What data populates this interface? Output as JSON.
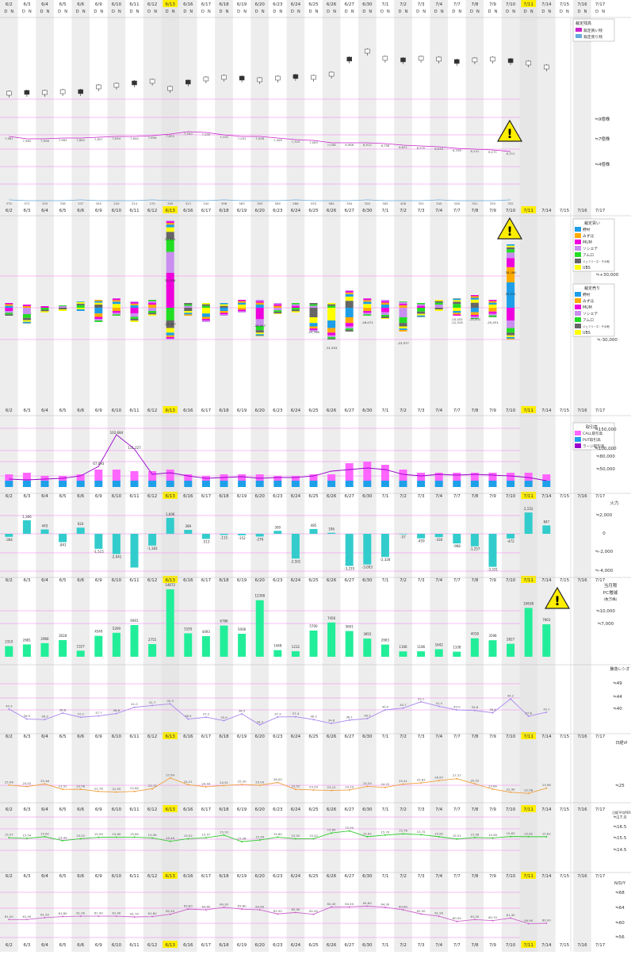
{
  "dates": [
    "6/2",
    "6/3",
    "6/4",
    "6/5",
    "6/6",
    "6/9",
    "6/10",
    "6/11",
    "6/12",
    "6/13",
    "6/16",
    "6/17",
    "6/18",
    "6/19",
    "6/20",
    "6/23",
    "6/24",
    "6/25",
    "6/26",
    "6/27",
    "6/30",
    "7/1",
    "7/2",
    "7/3",
    "7/4",
    "7/7",
    "7/8",
    "7/9",
    "7/10",
    "7/11",
    "7/14",
    "7/15",
    "7/16",
    "7/17"
  ],
  "day_flags": [
    "D",
    "N"
  ],
  "highlight_dates": [
    "6/13",
    "7/11"
  ],
  "colors": {
    "highlight": "#ffee00",
    "band": "#ededed",
    "pink_line": "#f27ff2",
    "candle_up": "#ffffff",
    "candle_down": "#333333",
    "margin_buy": "#cc22cc",
    "margin_sell": "#66aadd",
    "nomura": "#1e9ee8",
    "mizuho": "#ffaa00",
    "mum": "#ee00dd",
    "sg": "#c98ef0",
    "amro": "#22dd22",
    "jefferies": "#666666",
    "ubs": "#ffff00",
    "call": "#ff66ff",
    "put": "#1ea0e8",
    "large": "#9900cc",
    "trend_bar": "#33cccc",
    "pc_bar": "#22ee99",
    "ratio_line": "#aa88ee",
    "vi_line": "#f0a040",
    "per_line": "#33cc33",
    "nd_line": "#cc66cc"
  },
  "warning_icons": [
    "warning-icon",
    "warning-icon",
    "warning-icon"
  ],
  "charts": {
    "price": {
      "legend_title": "裁定残高",
      "legend": [
        "裁定買い残",
        "裁定売り残"
      ],
      "right_labels": [
        "≒9億株",
        "≒7億株",
        "≒4億株"
      ],
      "margin_buy_labels": [
        "7,961",
        "7,962",
        "7,906",
        "7,983",
        "7,862",
        "7,657",
        "7,654",
        "7,640",
        "7,656",
        "7,631",
        "7,500",
        "7,200",
        "7,100",
        "7,041",
        "7,046",
        "7,408",
        "7,325",
        "7,063",
        "7,058",
        "6,986",
        "6,912",
        "6,758",
        "6,621",
        "6,570",
        "6,540",
        "6,338",
        "6,241",
        "6,271",
        "6,311"
      ],
      "margin_sell_labels": [
        "375",
        "372",
        "335",
        "338",
        "337",
        "345",
        "240",
        "224",
        "270",
        "340",
        "323",
        "340",
        "398",
        "563",
        "363",
        "585",
        "586",
        "555",
        "564",
        "394",
        "300",
        "365",
        "408",
        "352",
        "345",
        "346",
        "351",
        "355",
        "332"
      ]
    },
    "brokers": {
      "legend1_title": "裁定買い",
      "legend2_title": "裁定売り",
      "legend": [
        "野村",
        "みずほ",
        "MUM",
        "ソシエテ",
        "アムロ",
        "ジェフリーズ・その他",
        "UBS"
      ],
      "right_labels": [
        "≒+30,000",
        "0",
        "≒-30,000"
      ],
      "labels": [
        "22,521",
        "32,706",
        "-27,497",
        "38,186",
        "25,371",
        "-25,348",
        "-31,503",
        "-28,907",
        "-26,071",
        "-23,577",
        "-20,031",
        "-18,001",
        "-12,319",
        "-10,432"
      ]
    },
    "volume": {
      "legend_title": "取引高",
      "legend": [
        "CALL取引高",
        "PUT取引高",
        "ラージ取引高"
      ],
      "right_labels": [
        "≒150,000",
        "≒100,000",
        "≒80,000",
        "≒50,000"
      ],
      "peak_labels": [
        "67,093",
        "102,684",
        "111,227"
      ]
    },
    "trend": {
      "title": "火力",
      "right_labels": [
        "≒2,000",
        "0",
        "≒-2,000",
        "≒-4,000"
      ],
      "values": [
        -304,
        1366,
        443,
        -841,
        624,
        -1515,
        -2041,
        -3400,
        -1183,
        1606,
        399,
        -513,
        -115,
        -152,
        -276,
        300,
        -2501,
        485,
        106,
        -3235,
        -3093,
        -2328,
        -57,
        -459,
        -330,
        -968,
        -1257,
        -3331,
        -472,
        2152,
        847,
        null,
        null,
        null
      ],
      "labels": [
        "-304",
        "1,366",
        "443",
        "-841",
        "624",
        "-1,515",
        "-2,041",
        "",
        "-1,183",
        "1,606",
        "399",
        "-513",
        "-115",
        "-152",
        "-276",
        "300",
        "-2,501",
        "485",
        "106",
        "-3,235",
        "-3,093",
        "-2,328",
        "-57",
        "-459",
        "-330",
        "-968",
        "-1,257",
        "-3,331",
        "-472",
        "2,152",
        "847",
        "",
        "",
        ""
      ]
    },
    "pc": {
      "title": "当月限",
      "title2": "PC増減",
      "title3": "(枚万株)",
      "right_labels": [
        "≒10,000",
        "≒7,000"
      ],
      "values": [
        2310,
        2681,
        2966,
        3628,
        1327,
        4549,
        5209,
        6901,
        2755,
        14672,
        5105,
        4493,
        6786,
        5006,
        12308,
        1448,
        1212,
        5700,
        7456,
        5601,
        3955,
        2663,
        1166,
        1186,
        1642,
        1108,
        4018,
        3598,
        2827,
        10638,
        7063,
        null,
        null,
        null
      ],
      "labels": [
        "2310",
        "2681",
        "2966",
        "3628",
        "1327",
        "4549",
        "5209",
        "6901",
        "2755",
        "14672",
        "5105",
        "4493",
        "6786",
        "5006",
        "12308",
        "1448",
        "1212",
        "5700",
        "7456",
        "5601",
        "3955",
        "2663",
        "1166",
        "1186",
        "1642",
        "1108",
        "4018",
        "3598",
        "2827",
        "10638",
        "7063",
        "",
        "",
        ""
      ]
    },
    "ratio": {
      "title": "騰落レシオ",
      "right_labels": [
        "≒49",
        "≒44",
        "≒40"
      ],
      "values": [
        40.3,
        36.5,
        36.3,
        38.8,
        37.2,
        37.7,
        38.6,
        41.0,
        41.7,
        42.3,
        36.5,
        37.2,
        35.9,
        38.5,
        34.3,
        37.3,
        37.4,
        36.3,
        34.8,
        36.1,
        36.7,
        40.0,
        40.7,
        43.1,
        41.4,
        40.0,
        39.8,
        38.9,
        44.2,
        37.6,
        39.1,
        null,
        null,
        null
      ]
    },
    "vi": {
      "title": "日経VI",
      "right_labels": [
        "≒25"
      ],
      "values": [
        25.06,
        24.52,
        25.46,
        23.52,
        23.56,
        22.78,
        22.55,
        22.8,
        23.72,
        27.64,
        25.21,
        24.44,
        24.91,
        25.3,
        25.0,
        26.0,
        23.52,
        23.29,
        23.12,
        23.29,
        24.59,
        24.22,
        25.41,
        25.83,
        26.67,
        27.37,
        25.52,
        23.6,
        22.49,
        22.08,
        23.96,
        null,
        null,
        null
      ]
    },
    "per": {
      "title": "日経平均PER",
      "right_labels": [
        "≒17.0",
        "≒16.5",
        "≒15.5",
        "≒14.5"
      ],
      "values": [
        15.57,
        15.54,
        15.62,
        15.43,
        15.52,
        15.59,
        15.6,
        15.6,
        15.56,
        15.4,
        15.52,
        15.57,
        15.7,
        15.38,
        15.46,
        15.6,
        15.52,
        15.52,
        15.8,
        15.9,
        15.62,
        15.7,
        15.76,
        15.72,
        15.62,
        15.51,
        15.58,
        15.56,
        15.63,
        15.62,
        15.62,
        null,
        null,
        null
      ]
    },
    "nd": {
      "title": "N/D/Y",
      "right_labels": [
        "≒68",
        "≒64",
        "≒60",
        "≒56"
      ],
      "values": [
        61.0,
        61.0,
        61.5,
        61.8,
        61.9,
        61.9,
        61.9,
        61.7,
        61.8,
        62.4,
        63.8,
        63.6,
        64.3,
        63.8,
        63.6,
        62.5,
        62.9,
        62.4,
        64.4,
        64.4,
        64.6,
        64.3,
        63.6,
        62.5,
        61.9,
        60.5,
        61.0,
        60.7,
        61.4,
        59.9,
        60.0,
        null,
        null,
        null
      ]
    }
  },
  "chart_data": [
    {
      "type": "bar",
      "title": "火力",
      "categories": [
        "6/2",
        "6/3",
        "6/4",
        "6/5",
        "6/6",
        "6/9",
        "6/10",
        "6/11",
        "6/12",
        "6/13",
        "6/16",
        "6/17",
        "6/18",
        "6/19",
        "6/20",
        "6/23",
        "6/24",
        "6/25",
        "6/26",
        "6/27",
        "6/30",
        "7/1",
        "7/2",
        "7/3",
        "7/4",
        "7/7",
        "7/8",
        "7/9",
        "7/10",
        "7/11",
        "7/14"
      ],
      "values": [
        -304,
        1366,
        443,
        -841,
        624,
        -1515,
        -2041,
        -3400,
        -1183,
        1606,
        399,
        -513,
        -115,
        -152,
        -276,
        300,
        -2501,
        485,
        106,
        -3235,
        -3093,
        -2328,
        -57,
        -459,
        -330,
        -968,
        -1257,
        -3331,
        -472,
        2152,
        847
      ]
    },
    {
      "type": "bar",
      "title": "当月限 PC増減",
      "categories": [
        "6/2",
        "6/3",
        "6/4",
        "6/5",
        "6/6",
        "6/9",
        "6/10",
        "6/11",
        "6/12",
        "6/13",
        "6/16",
        "6/17",
        "6/18",
        "6/19",
        "6/20",
        "6/23",
        "6/24",
        "6/25",
        "6/26",
        "6/27",
        "6/30",
        "7/1",
        "7/2",
        "7/3",
        "7/4",
        "7/7",
        "7/8",
        "7/9",
        "7/10",
        "7/11",
        "7/14"
      ],
      "values": [
        2310,
        2681,
        2966,
        3628,
        1327,
        4549,
        5209,
        6901,
        2755,
        14672,
        5105,
        4493,
        6786,
        5006,
        12308,
        1448,
        1212,
        5700,
        7456,
        5601,
        3955,
        2663,
        1166,
        1186,
        1642,
        1108,
        4018,
        3598,
        2827,
        10638,
        7063
      ]
    },
    {
      "type": "line",
      "title": "騰落レシオ",
      "categories": [
        "6/2",
        "6/3",
        "6/4",
        "6/5",
        "6/6",
        "6/9",
        "6/10",
        "6/11",
        "6/12",
        "6/13",
        "6/16",
        "6/17",
        "6/18",
        "6/19",
        "6/20",
        "6/23",
        "6/24",
        "6/25",
        "6/26",
        "6/27",
        "6/30",
        "7/1",
        "7/2",
        "7/3",
        "7/4",
        "7/7",
        "7/8",
        "7/9",
        "7/10",
        "7/11",
        "7/14"
      ],
      "values": [
        40.3,
        36.5,
        36.3,
        38.8,
        37.2,
        37.7,
        38.6,
        41.0,
        41.7,
        42.3,
        36.5,
        37.2,
        35.9,
        38.5,
        34.3,
        37.3,
        37.4,
        36.3,
        34.8,
        36.1,
        36.7,
        40.0,
        40.7,
        43.1,
        41.4,
        40.0,
        39.8,
        38.9,
        44.2,
        37.6,
        39.1
      ]
    }
  ]
}
